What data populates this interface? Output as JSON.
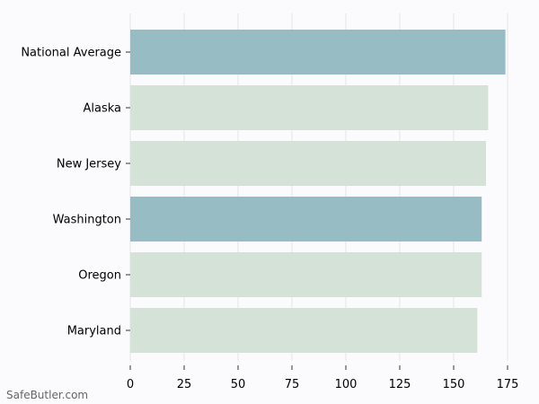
{
  "chart_data": {
    "type": "bar",
    "orientation": "horizontal",
    "categories": [
      "National Average",
      "Alaska",
      "New Jersey",
      "Washington",
      "Oregon",
      "Maryland"
    ],
    "values": [
      174,
      166,
      165,
      163,
      163,
      161
    ],
    "highlighted": [
      true,
      false,
      false,
      true,
      false,
      false
    ],
    "xlim": [
      0,
      175
    ],
    "xticks": [
      0,
      25,
      50,
      75,
      100,
      125,
      150,
      175
    ],
    "grid": "vertical",
    "colors": {
      "highlight": "#97bcc4",
      "default": "#d5e2d8",
      "grid": "#e6e6e6",
      "background": "#fbfbfd"
    }
  },
  "watermark": "SafeButler.com"
}
